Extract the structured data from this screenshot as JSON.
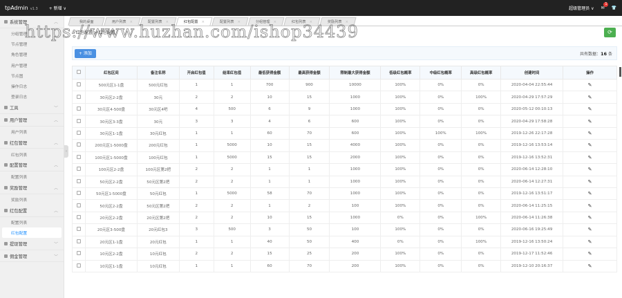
{
  "topbar": {
    "brand": "tpAdmin",
    "version": "v1.3",
    "new_label": "+ 新增 ∨",
    "user": "超级管理员 ∨",
    "msg_count": "1"
  },
  "sidebar": [
    {
      "label": "系统管理",
      "expanded": true,
      "items": [
        "分组管理",
        "节点管理",
        "角色管理",
        "用户管理",
        "节点图",
        "操作日志",
        "登录日志"
      ]
    },
    {
      "label": "工具",
      "expanded": false,
      "items": []
    },
    {
      "label": "用户管理",
      "expanded": true,
      "items": [
        "用户列表"
      ]
    },
    {
      "label": "红包管理",
      "expanded": true,
      "items": [
        "红包列表"
      ]
    },
    {
      "label": "配置管理",
      "expanded": true,
      "items": [
        "配置列表"
      ]
    },
    {
      "label": "奖励管理",
      "expanded": true,
      "items": [
        "奖励列表"
      ]
    },
    {
      "label": "红包配置",
      "expanded": true,
      "items": [
        "配置列表",
        "红包配置"
      ],
      "active": "红包配置"
    },
    {
      "label": "提现管理",
      "expanded": false,
      "items": []
    },
    {
      "label": "佣金管理",
      "expanded": false,
      "items": []
    }
  ],
  "tabs": [
    {
      "label": "我的桌面"
    },
    {
      "label": "用户列表"
    },
    {
      "label": "配置列表"
    },
    {
      "label": "红包配置",
      "active": true
    },
    {
      "label": "配置列表"
    },
    {
      "label": "分组管理"
    },
    {
      "label": "红包列表"
    },
    {
      "label": "奖励列表"
    }
  ],
  "breadcrumb": "红包配置 > 红包配置",
  "toolbar": {
    "add_label": "+ 添加",
    "total_prefix": "共有数据：",
    "total_count": "16",
    "total_suffix": " 条"
  },
  "watermark": "https://www.huzhan.com/ishop34439",
  "table": {
    "headers": [
      "红包区间",
      "备注名称",
      "开启红包值",
      "结束红包值",
      "最低获得金额",
      "最高获得金额",
      "限制最大获得金额",
      "低级红包概率",
      "中级红包概率",
      "高级红包概率",
      "创建时间",
      "操作"
    ],
    "rows": [
      [
        "500元区1-1盘",
        "500元红包",
        "1",
        "1",
        "700",
        "900",
        "10000",
        "100%",
        "0%",
        "0%",
        "2020-04-04 22:55:44"
      ],
      [
        "30元区2-2盘",
        "30元",
        "2",
        "2",
        "10",
        "15",
        "1000",
        "100%",
        "0%",
        "100%",
        "2020-04-29 17:57:29"
      ],
      [
        "30元区4-500盘",
        "30元区4吧",
        "4",
        "500",
        "6",
        "9",
        "1000",
        "100%",
        "0%",
        "0%",
        "2020-05-12 00:10:13"
      ],
      [
        "30元区3-3盘",
        "30元",
        "3",
        "3",
        "4",
        "6",
        "600",
        "100%",
        "0%",
        "0%",
        "2020-04-29 17:58:28"
      ],
      [
        "30元区1-1盘",
        "30元红包",
        "1",
        "1",
        "60",
        "70",
        "600",
        "100%",
        "100%",
        "100%",
        "2019-12-26 22:17:28"
      ],
      [
        "200元区1-5000盘",
        "200元红包",
        "1",
        "5000",
        "10",
        "15",
        "4000",
        "100%",
        "0%",
        "0%",
        "2019-12-16 13:53:14"
      ],
      [
        "100元区1-5000盘",
        "100元红包",
        "1",
        "5000",
        "15",
        "15",
        "2000",
        "100%",
        "0%",
        "0%",
        "2019-12-16 13:52:31"
      ],
      [
        "100元区2-2盘",
        "100元区第2把",
        "2",
        "2",
        "1",
        "1",
        "1000",
        "100%",
        "0%",
        "0%",
        "2020-06-14 12:28:10"
      ],
      [
        "50元区2-2盘",
        "50元区第2把",
        "2",
        "2",
        "1",
        "1",
        "1000",
        "100%",
        "0%",
        "0%",
        "2020-06-14 12:27:31"
      ],
      [
        "50元区1-5000盘",
        "50元红包",
        "1",
        "5000",
        "58",
        "70",
        "1000",
        "100%",
        "0%",
        "0%",
        "2019-12-16 13:51:17"
      ],
      [
        "50元区2-2盘",
        "50元区第2把",
        "2",
        "2",
        "1",
        "2",
        "100",
        "100%",
        "0%",
        "0%",
        "2020-06-14 11:25:15"
      ],
      [
        "20元区2-2盘",
        "20元区第2把",
        "2",
        "2",
        "10",
        "15",
        "1000",
        "0%",
        "0%",
        "100%",
        "2020-06-14 11:26:38"
      ],
      [
        "20元区3-500盘",
        "20元红包3",
        "3",
        "500",
        "3",
        "50",
        "100",
        "100%",
        "0%",
        "0%",
        "2020-06-16 19:25:49"
      ],
      [
        "20元区1-1盘",
        "20元红包",
        "1",
        "1",
        "40",
        "50",
        "400",
        "0%",
        "0%",
        "100%",
        "2019-12-16 13:50:24"
      ],
      [
        "10元区2-2盘",
        "10元红包",
        "2",
        "2",
        "15",
        "25",
        "200",
        "100%",
        "0%",
        "0%",
        "2019-12-17 11:52:46"
      ],
      [
        "10元区1-1盘",
        "10元红包",
        "1",
        "1",
        "60",
        "70",
        "200",
        "100%",
        "0%",
        "0%",
        "2019-12-10 20:16:37"
      ]
    ]
  },
  "colors": {
    "topbar": "#222222",
    "accent": "#4a90e2",
    "refresh": "#4caf50",
    "active_link": "#1e90ff",
    "badge": "#e53935"
  }
}
